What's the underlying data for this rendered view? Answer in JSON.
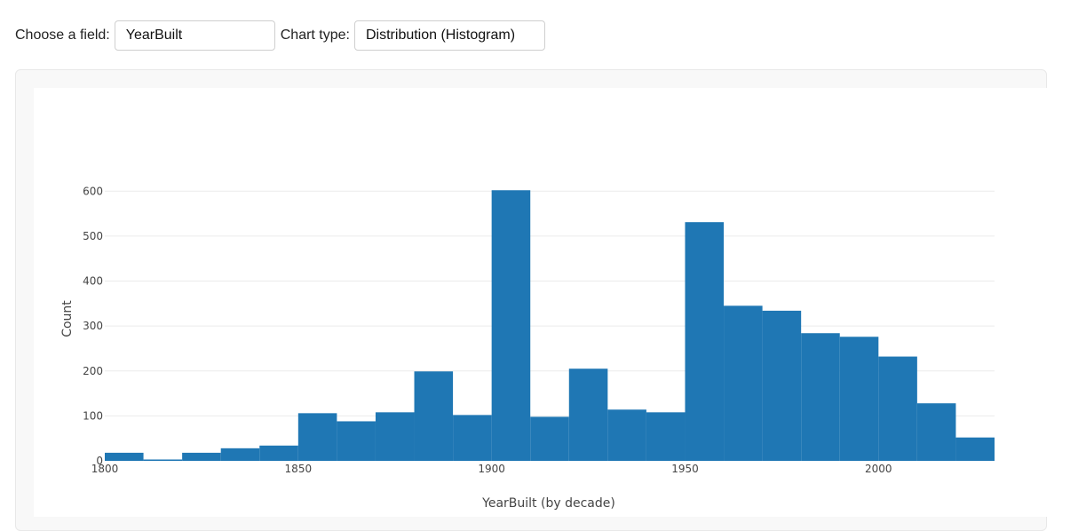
{
  "controls": {
    "field_label": "Choose a field:",
    "field_value": "YearBuilt",
    "chart_type_label": "Chart type:",
    "chart_type_value": "Distribution (Histogram)"
  },
  "colors": {
    "bar": "#1f77b4",
    "grid": "#ebebeb",
    "axis_text": "#444444"
  },
  "chart_data": {
    "type": "bar",
    "title": "",
    "xlabel": "YearBuilt (by decade)",
    "ylabel": "Count",
    "bin_width": 10,
    "bins": [
      {
        "start": 1800,
        "count": 18
      },
      {
        "start": 1810,
        "count": 3
      },
      {
        "start": 1820,
        "count": 18
      },
      {
        "start": 1830,
        "count": 28
      },
      {
        "start": 1840,
        "count": 34
      },
      {
        "start": 1850,
        "count": 106
      },
      {
        "start": 1860,
        "count": 88
      },
      {
        "start": 1870,
        "count": 108
      },
      {
        "start": 1880,
        "count": 199
      },
      {
        "start": 1890,
        "count": 102
      },
      {
        "start": 1900,
        "count": 602
      },
      {
        "start": 1910,
        "count": 98
      },
      {
        "start": 1920,
        "count": 205
      },
      {
        "start": 1930,
        "count": 114
      },
      {
        "start": 1940,
        "count": 108
      },
      {
        "start": 1950,
        "count": 531
      },
      {
        "start": 1960,
        "count": 345
      },
      {
        "start": 1970,
        "count": 334
      },
      {
        "start": 1980,
        "count": 284
      },
      {
        "start": 1990,
        "count": 276
      },
      {
        "start": 2000,
        "count": 232
      },
      {
        "start": 2010,
        "count": 128
      },
      {
        "start": 2020,
        "count": 52
      }
    ],
    "xlim": [
      1800,
      2030
    ],
    "ylim": [
      0,
      640
    ],
    "x_ticks": [
      "1800",
      "1850",
      "1900",
      "1950",
      "2000"
    ],
    "y_ticks": [
      "0",
      "100",
      "200",
      "300",
      "400",
      "500",
      "600"
    ],
    "grid": true
  }
}
